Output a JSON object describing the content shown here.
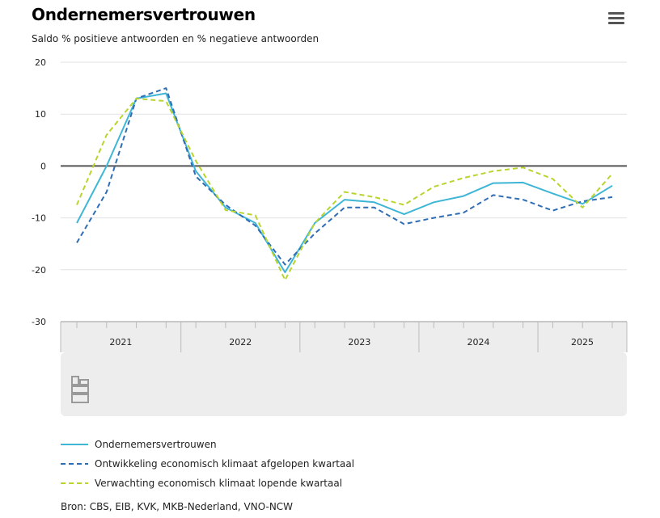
{
  "header": {
    "title": "Ondernemersvertrouwen",
    "subtitle": "Saldo % positieve antwoorden en % negatieve antwoorden",
    "menu_icon": "hamburger-menu-icon"
  },
  "logo_icon": "cbs-logo-icon",
  "source": "Bron: CBS, EIB, KVK, MKB-Nederland, VNO-NCW",
  "colors": {
    "series1": "#3fb6d6",
    "series2": "#2f6db5",
    "series3": "#b9d42c",
    "zero_line": "#555555",
    "grid": "#e2e2e2",
    "axis_band": "#ededed"
  },
  "chart_data": {
    "type": "line",
    "x": [
      "2021-Q1",
      "2021-Q2",
      "2021-Q3",
      "2021-Q4",
      "2022-Q1",
      "2022-Q2",
      "2022-Q3",
      "2022-Q4",
      "2023-Q1",
      "2023-Q2",
      "2023-Q3",
      "2023-Q4",
      "2024-Q1",
      "2024-Q2",
      "2024-Q3",
      "2024-Q4",
      "2025-Q1",
      "2025-Q2",
      "2025-Q3"
    ],
    "x_tick_labels": [
      "2021",
      "2022",
      "2023",
      "2024",
      "2025"
    ],
    "ylim": [
      -30,
      20
    ],
    "y_ticks": [
      20,
      10,
      0,
      -10,
      -20,
      -30
    ],
    "grid": true,
    "legend_position": "bottom",
    "series": [
      {
        "name": "Ondernemersvertrouwen",
        "style": "solid",
        "values": [
          -11,
          0,
          13,
          14,
          -1,
          -8,
          -11,
          -20.5,
          -11,
          -6.5,
          -7,
          -9.3,
          -7,
          -5.8,
          -3.3,
          -3.2,
          -5.3,
          -7.3,
          -3.8
        ]
      },
      {
        "name": "Ontwikkeling economisch klimaat afgelopen kwartaal",
        "style": "dashed",
        "values": [
          -14.8,
          -5,
          13,
          15,
          -2,
          -7.5,
          -11.5,
          -19,
          -13,
          -8,
          -8,
          -11.2,
          -10,
          -9,
          -5.6,
          -6.5,
          -8.6,
          -6.8,
          -6
        ]
      },
      {
        "name": "Verwachting economisch klimaat lopende kwartaal",
        "style": "dashed",
        "values": [
          -7.5,
          6,
          13,
          12.5,
          1,
          -8.5,
          -9.5,
          -22,
          -11,
          -5,
          -6,
          -7.5,
          -4,
          -2.3,
          -1,
          -0.3,
          -2.5,
          -8,
          -1.5
        ]
      }
    ]
  }
}
